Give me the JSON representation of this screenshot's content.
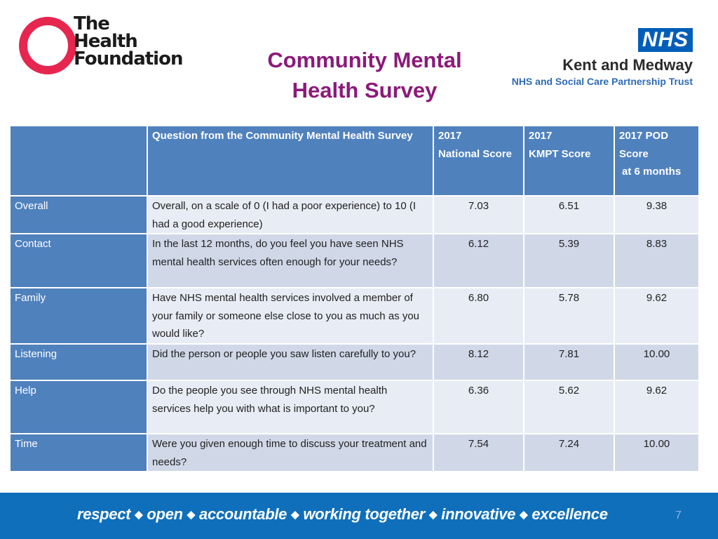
{
  "logos": {
    "health_foundation": [
      "The",
      "Health",
      "Foundation"
    ],
    "nhs_badge": "NHS",
    "nhs_org": "Kent and Medway",
    "nhs_trust": "NHS and Social Care Partnership Trust"
  },
  "title": [
    "Community Mental",
    "Health Survey"
  ],
  "table": {
    "headers": {
      "question": "Question from the Community Mental Health Survey",
      "national": [
        "2017",
        "National Score"
      ],
      "kmpt": [
        "2017",
        "KMPT Score"
      ],
      "pod": [
        "2017 POD",
        "Score",
        "at 6 months"
      ]
    },
    "rows": [
      {
        "label": "Overall",
        "question": "Overall, on a scale of 0 (I had a poor experience) to 10 (I had a good experience)",
        "national": "7.03",
        "kmpt": "6.51",
        "pod": "9.38"
      },
      {
        "label": "Contact",
        "question": "In the last 12 months, do you feel you have seen NHS mental health services often enough for your needs?",
        "national": "6.12",
        "kmpt": "5.39",
        "pod": "8.83"
      },
      {
        "label": "Family",
        "question": "Have NHS mental health services involved a member of your family or someone else close to you as much as you would like?",
        "national": "6.80",
        "kmpt": "5.78",
        "pod": "9.62"
      },
      {
        "label": "Listening",
        "question": "Did the person or people you saw listen carefully to you?",
        "national": "8.12",
        "kmpt": "7.81",
        "pod": "10.00"
      },
      {
        "label": "Help",
        "question": "Do the people you see through NHS mental health services help you with what is important to you?",
        "national": "6.36",
        "kmpt": "5.62",
        "pod": "9.62"
      },
      {
        "label": "Time",
        "question": "Were you given enough time to discuss your treatment and needs?",
        "national": "7.54",
        "kmpt": "7.24",
        "pod": "10.00"
      }
    ]
  },
  "footer": {
    "values": [
      "respect",
      "open",
      "accountable",
      "working together",
      "innovative",
      "excellence"
    ],
    "separator": "◆",
    "page_number": "7"
  },
  "colors": {
    "title": "#8b1a7a",
    "table_header": "#4f81bd",
    "row_light": "#e8ecf4",
    "row_dark": "#d0d8e8",
    "footer": "#0f6fbb",
    "health_foundation_red": "#e6264f",
    "nhs_blue": "#005eb8"
  }
}
